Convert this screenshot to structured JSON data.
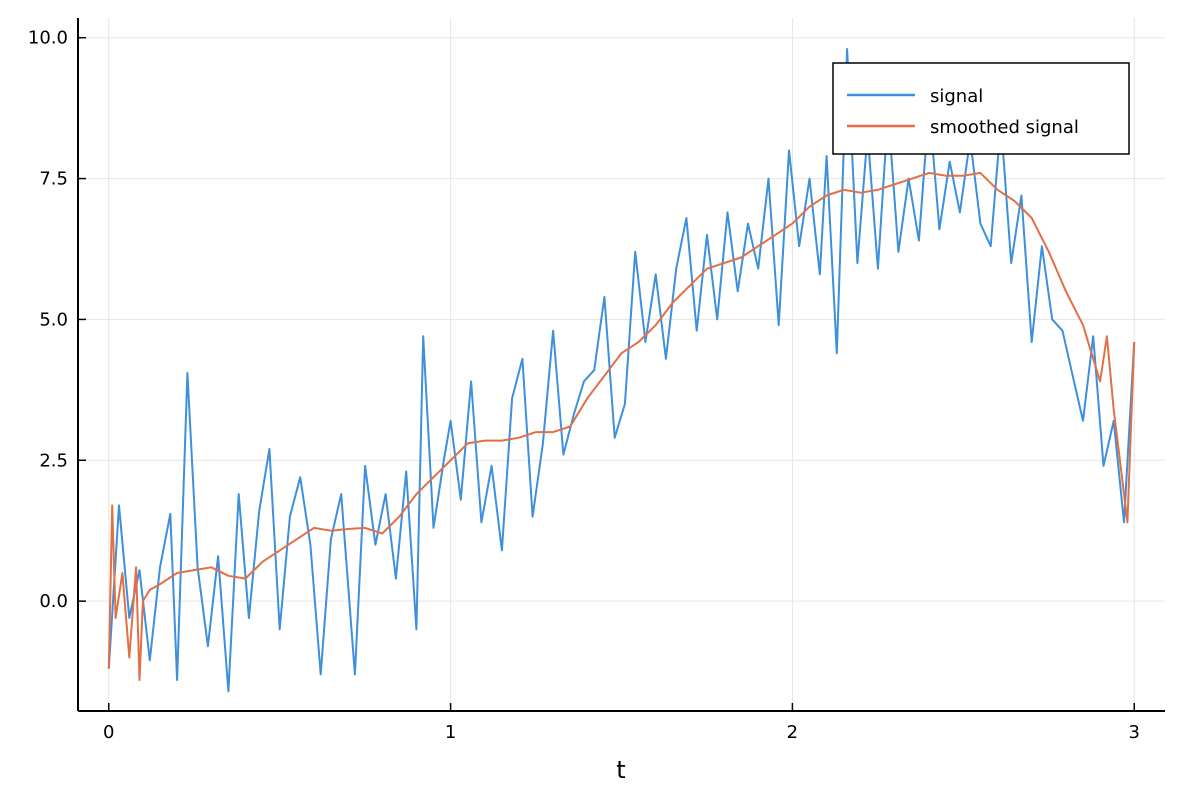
{
  "chart_data": {
    "type": "line",
    "title": "",
    "xlabel": "t",
    "ylabel": "",
    "xlim": [
      -0.09,
      3.09
    ],
    "ylim": [
      -1.95,
      10.35
    ],
    "xticks": [
      0,
      1,
      2,
      3
    ],
    "xtick_labels": [
      "0",
      "1",
      "2",
      "3"
    ],
    "yticks": [
      0.0,
      2.5,
      5.0,
      7.5,
      10.0
    ],
    "ytick_labels": [
      "0.0",
      "2.5",
      "5.0",
      "7.5",
      "10.0"
    ],
    "grid": true,
    "legend_position": "top-right",
    "series": [
      {
        "name": "signal",
        "color": "#3E8FDC",
        "x": [
          0,
          0.03,
          0.06,
          0.09,
          0.12,
          0.15,
          0.18,
          0.2,
          0.23,
          0.26,
          0.29,
          0.32,
          0.35,
          0.38,
          0.41,
          0.44,
          0.47,
          0.5,
          0.53,
          0.56,
          0.59,
          0.62,
          0.65,
          0.68,
          0.72,
          0.75,
          0.78,
          0.81,
          0.84,
          0.87,
          0.9,
          0.92,
          0.95,
          0.98,
          1.0,
          1.03,
          1.06,
          1.09,
          1.12,
          1.15,
          1.18,
          1.21,
          1.24,
          1.27,
          1.3,
          1.33,
          1.36,
          1.39,
          1.42,
          1.45,
          1.48,
          1.51,
          1.54,
          1.57,
          1.6,
          1.63,
          1.66,
          1.69,
          1.72,
          1.75,
          1.78,
          1.81,
          1.84,
          1.87,
          1.9,
          1.93,
          1.96,
          1.99,
          2.02,
          2.05,
          2.08,
          2.1,
          2.13,
          2.16,
          2.19,
          2.22,
          2.25,
          2.28,
          2.31,
          2.34,
          2.37,
          2.4,
          2.43,
          2.46,
          2.49,
          2.52,
          2.55,
          2.58,
          2.61,
          2.64,
          2.67,
          2.7,
          2.73,
          2.76,
          2.79,
          2.82,
          2.85,
          2.88,
          2.91,
          2.94,
          2.97,
          3.0
        ],
        "y": [
          -1.2,
          1.7,
          -0.3,
          0.55,
          -1.05,
          0.6,
          1.55,
          -1.4,
          4.05,
          0.6,
          -0.8,
          0.8,
          -1.6,
          1.9,
          -0.3,
          1.6,
          2.7,
          -0.5,
          1.5,
          2.2,
          1.0,
          -1.3,
          1.1,
          1.9,
          -1.3,
          2.4,
          1.0,
          1.9,
          0.4,
          2.3,
          -0.5,
          4.7,
          1.3,
          2.5,
          3.2,
          1.8,
          3.9,
          1.4,
          2.4,
          0.9,
          3.6,
          4.3,
          1.5,
          2.8,
          4.8,
          2.6,
          3.3,
          3.9,
          4.1,
          5.4,
          2.9,
          3.5,
          6.2,
          4.6,
          5.8,
          4.3,
          5.9,
          6.8,
          4.8,
          6.5,
          5.0,
          6.9,
          5.5,
          6.7,
          5.9,
          7.5,
          4.9,
          8.0,
          6.3,
          7.5,
          5.8,
          7.9,
          4.4,
          9.8,
          6.0,
          8.3,
          5.9,
          8.7,
          6.2,
          7.5,
          6.4,
          8.8,
          6.6,
          7.8,
          6.9,
          8.2,
          6.7,
          6.3,
          8.5,
          6.0,
          7.2,
          4.6,
          6.3,
          5.0,
          4.8,
          4.0,
          3.2,
          4.7,
          2.4,
          3.2,
          1.4,
          4.6
        ]
      },
      {
        "name": "smoothed signal",
        "color": "#E26F46",
        "x": [
          0,
          0.01,
          0.02,
          0.04,
          0.06,
          0.08,
          0.09,
          0.1,
          0.12,
          0.15,
          0.2,
          0.25,
          0.3,
          0.35,
          0.4,
          0.45,
          0.5,
          0.55,
          0.6,
          0.65,
          0.7,
          0.75,
          0.8,
          0.85,
          0.9,
          0.95,
          1.0,
          1.05,
          1.1,
          1.15,
          1.2,
          1.25,
          1.3,
          1.35,
          1.4,
          1.45,
          1.5,
          1.55,
          1.6,
          1.65,
          1.7,
          1.75,
          1.8,
          1.85,
          1.9,
          1.95,
          2.0,
          2.05,
          2.1,
          2.15,
          2.2,
          2.25,
          2.3,
          2.35,
          2.4,
          2.45,
          2.5,
          2.55,
          2.6,
          2.65,
          2.7,
          2.75,
          2.8,
          2.85,
          2.9,
          2.92,
          2.94,
          2.96,
          2.98,
          3.0
        ],
        "y": [
          -1.2,
          1.7,
          -0.3,
          0.5,
          -1.0,
          0.6,
          -1.4,
          0.0,
          0.2,
          0.3,
          0.5,
          0.55,
          0.6,
          0.45,
          0.4,
          0.7,
          0.9,
          1.1,
          1.3,
          1.25,
          1.28,
          1.3,
          1.2,
          1.5,
          1.9,
          2.2,
          2.5,
          2.8,
          2.85,
          2.85,
          2.9,
          3.0,
          3.0,
          3.1,
          3.6,
          4.0,
          4.4,
          4.6,
          4.9,
          5.3,
          5.6,
          5.9,
          6.0,
          6.1,
          6.3,
          6.5,
          6.7,
          7.0,
          7.2,
          7.3,
          7.25,
          7.3,
          7.4,
          7.5,
          7.6,
          7.55,
          7.55,
          7.6,
          7.3,
          7.1,
          6.8,
          6.2,
          5.5,
          4.9,
          3.9,
          4.7,
          3.4,
          2.4,
          1.4,
          4.6
        ]
      }
    ]
  }
}
